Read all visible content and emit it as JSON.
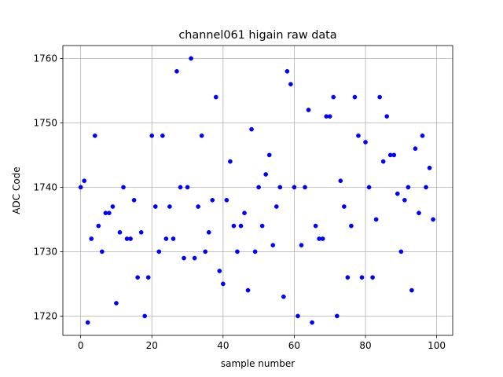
{
  "chart_data": {
    "type": "scatter",
    "title": "channel061 higain raw data",
    "xlabel": "sample number",
    "ylabel": "ADC Code",
    "xlim": [
      -5,
      104.5
    ],
    "ylim": [
      1717,
      1762
    ],
    "xticks": [
      0,
      20,
      40,
      60,
      80,
      100
    ],
    "yticks": [
      1720,
      1730,
      1740,
      1750,
      1760
    ],
    "grid": true,
    "marker_color": "#0000ff",
    "series": [
      {
        "x": [
          0,
          1,
          2,
          3,
          4,
          5,
          6,
          7,
          8,
          9,
          10,
          11,
          12,
          13,
          14,
          15,
          16,
          17,
          18,
          19,
          20,
          21,
          22,
          23,
          24,
          25,
          26,
          27,
          28,
          29,
          30,
          31,
          32,
          33,
          34,
          35,
          36,
          37,
          38,
          39,
          40,
          41,
          42,
          43,
          44,
          45,
          46,
          47,
          48,
          49,
          50,
          51,
          52,
          53,
          54,
          55,
          56,
          57,
          58,
          59,
          60,
          61,
          62,
          63,
          64,
          65,
          66,
          67,
          68,
          69,
          70,
          71,
          72,
          73,
          74,
          75,
          76,
          77,
          78,
          79,
          80,
          81,
          82,
          83,
          84,
          85,
          86,
          87,
          88,
          89,
          90,
          91,
          92,
          93,
          94,
          95,
          96,
          97,
          98,
          99
        ],
        "y": [
          1740,
          1741,
          1719,
          1732,
          1748,
          1734,
          1730,
          1736,
          1736,
          1737,
          1722,
          1733,
          1740,
          1732,
          1732,
          1738,
          1726,
          1733,
          1720,
          1726,
          1748,
          1737,
          1730,
          1748,
          1732,
          1737,
          1732,
          1758,
          1740,
          1729,
          1740,
          1760,
          1729,
          1737,
          1748,
          1730,
          1733,
          1738,
          1754,
          1727,
          1725,
          1738,
          1744,
          1734,
          1730,
          1734,
          1736,
          1724,
          1749,
          1730,
          1740,
          1734,
          1742,
          1745,
          1731,
          1737,
          1740,
          1723,
          1758,
          1756,
          1740,
          1720,
          1731,
          1740,
          1752,
          1719,
          1734,
          1732,
          1732,
          1751,
          1751,
          1754,
          1720,
          1741,
          1737,
          1726,
          1734,
          1754,
          1748,
          1726,
          1747,
          1740,
          1726,
          1735,
          1754,
          1744,
          1751,
          1745,
          1745,
          1739,
          1730,
          1738,
          1740,
          1724,
          1746,
          1736,
          1748,
          1740,
          1743,
          1735
        ]
      }
    ]
  }
}
